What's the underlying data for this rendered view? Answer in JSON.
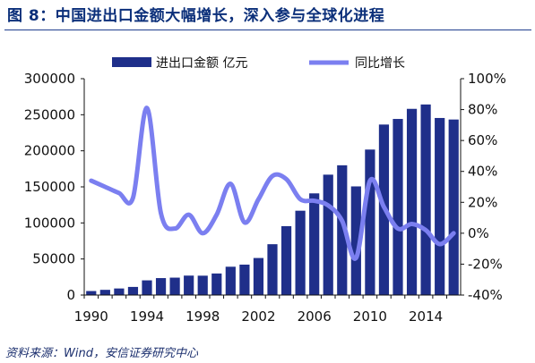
{
  "title": "图 8：中国进出口金额大幅增长，深入参与全球化进程",
  "source": "资料来源：Wind，安信证券研究中心",
  "colors": {
    "bar": "#1f2f8a",
    "line": "#7b7ff0",
    "title": "#0b2f7a"
  },
  "chart_data": {
    "type": "bar+line",
    "categories": [
      "1990",
      "1991",
      "1992",
      "1993",
      "1994",
      "1995",
      "1996",
      "1997",
      "1998",
      "1999",
      "2000",
      "2001",
      "2002",
      "2003",
      "2004",
      "2005",
      "2006",
      "2007",
      "2008",
      "2009",
      "2010",
      "2011",
      "2012",
      "2013",
      "2014",
      "2015",
      "2016"
    ],
    "x_tick_labels": [
      "1990",
      "1994",
      "1998",
      "2002",
      "2006",
      "2010",
      "2014"
    ],
    "y_left_ticks": [
      "0",
      "50000",
      "100000",
      "150000",
      "200000",
      "250000",
      "300000"
    ],
    "y_left_range": [
      0,
      300000
    ],
    "y_right_ticks": [
      "-40%",
      "-20%",
      "0%",
      "20%",
      "40%",
      "60%",
      "80%",
      "100%"
    ],
    "y_right_range": [
      -40,
      100
    ],
    "grid": false,
    "legend_position": "top",
    "series": [
      {
        "name": "进出口金额 亿元",
        "type": "bar",
        "axis": "left",
        "values": [
          5560,
          7226,
          9120,
          11271,
          20382,
          23500,
          24134,
          26967,
          26850,
          29896,
          39273,
          42184,
          51378,
          70484,
          95539,
          116922,
          140974,
          166924,
          179921,
          150648,
          201722,
          236402,
          244160,
          258169,
          264242,
          245503,
          243386
        ]
      },
      {
        "name": "同比增长",
        "type": "line",
        "axis": "right",
        "values": [
          34,
          30,
          26,
          23,
          81,
          13,
          3,
          12,
          0,
          12,
          32,
          7,
          22,
          37,
          35,
          22,
          21,
          18,
          8,
          -16,
          34,
          17,
          3,
          6,
          2,
          -7,
          0
        ]
      }
    ]
  }
}
